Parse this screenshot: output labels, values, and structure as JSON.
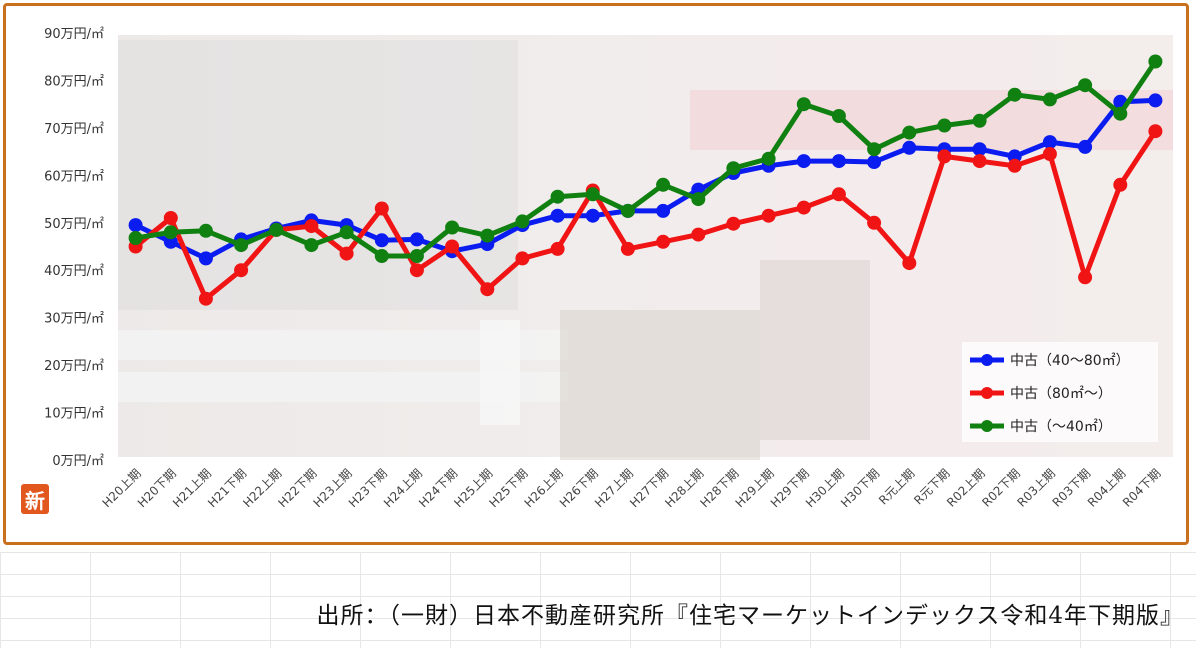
{
  "chart_data": {
    "type": "line",
    "categories": [
      "H20上期",
      "H20下期",
      "H21上期",
      "H21下期",
      "H22上期",
      "H22下期",
      "H23上期",
      "H23下期",
      "H24上期",
      "H24下期",
      "H25上期",
      "H25下期",
      "H26上期",
      "H26下期",
      "H27上期",
      "H27下期",
      "H28上期",
      "H28下期",
      "H29上期",
      "H29下期",
      "H30上期",
      "H30下期",
      "R元上期",
      "R元下期",
      "R02上期",
      "R02下期",
      "R03上期",
      "R03下期",
      "R04上期",
      "R04下期"
    ],
    "ylim": [
      0,
      90
    ],
    "ytick_labels": [
      "0万円/㎡",
      "10万円/㎡",
      "20万円/㎡",
      "30万円/㎡",
      "40万円/㎡",
      "50万円/㎡",
      "60万円/㎡",
      "70万円/㎡",
      "80万円/㎡",
      "90万円/㎡"
    ],
    "grid": false,
    "legend_position": "bottom-right",
    "series": [
      {
        "name": "中古（40～80㎡）",
        "color": "#0a1cf0",
        "values": [
          49.5,
          46,
          42.5,
          46.5,
          48.8,
          50.5,
          49.5,
          46.3,
          46.5,
          44,
          45.5,
          49.5,
          51.5,
          51.5,
          52.5,
          52.5,
          57,
          60.5,
          62,
          63,
          63,
          62.8,
          65.8,
          65.5,
          65.5,
          64,
          67,
          66,
          75.5,
          75.8
        ]
      },
      {
        "name": "中古（80㎡～）",
        "color": "#f01414",
        "values": [
          45,
          51,
          34,
          40,
          48.5,
          49.3,
          43.5,
          53,
          40,
          45,
          36,
          42.5,
          44.5,
          56.8,
          44.5,
          46,
          47.5,
          49.8,
          51.5,
          53.2,
          56,
          50,
          41.5,
          64,
          63,
          62,
          64.5,
          38.5,
          58,
          69.3
        ]
      },
      {
        "name": "中古（～40㎡）",
        "color": "#108010",
        "values": [
          46.8,
          48,
          48.3,
          45.3,
          48.5,
          45.3,
          48,
          43,
          43,
          49,
          47.3,
          50.3,
          55.5,
          56,
          52.5,
          58,
          55,
          61.5,
          63.5,
          75,
          72.5,
          65.5,
          69,
          70.5,
          71.5,
          77,
          76,
          79,
          73,
          84
        ]
      }
    ]
  },
  "badge": {
    "text": "新"
  },
  "source": {
    "text": "出所：（一財）日本不動産研究所『住宅マーケットインデックス令和4年下期版』"
  }
}
